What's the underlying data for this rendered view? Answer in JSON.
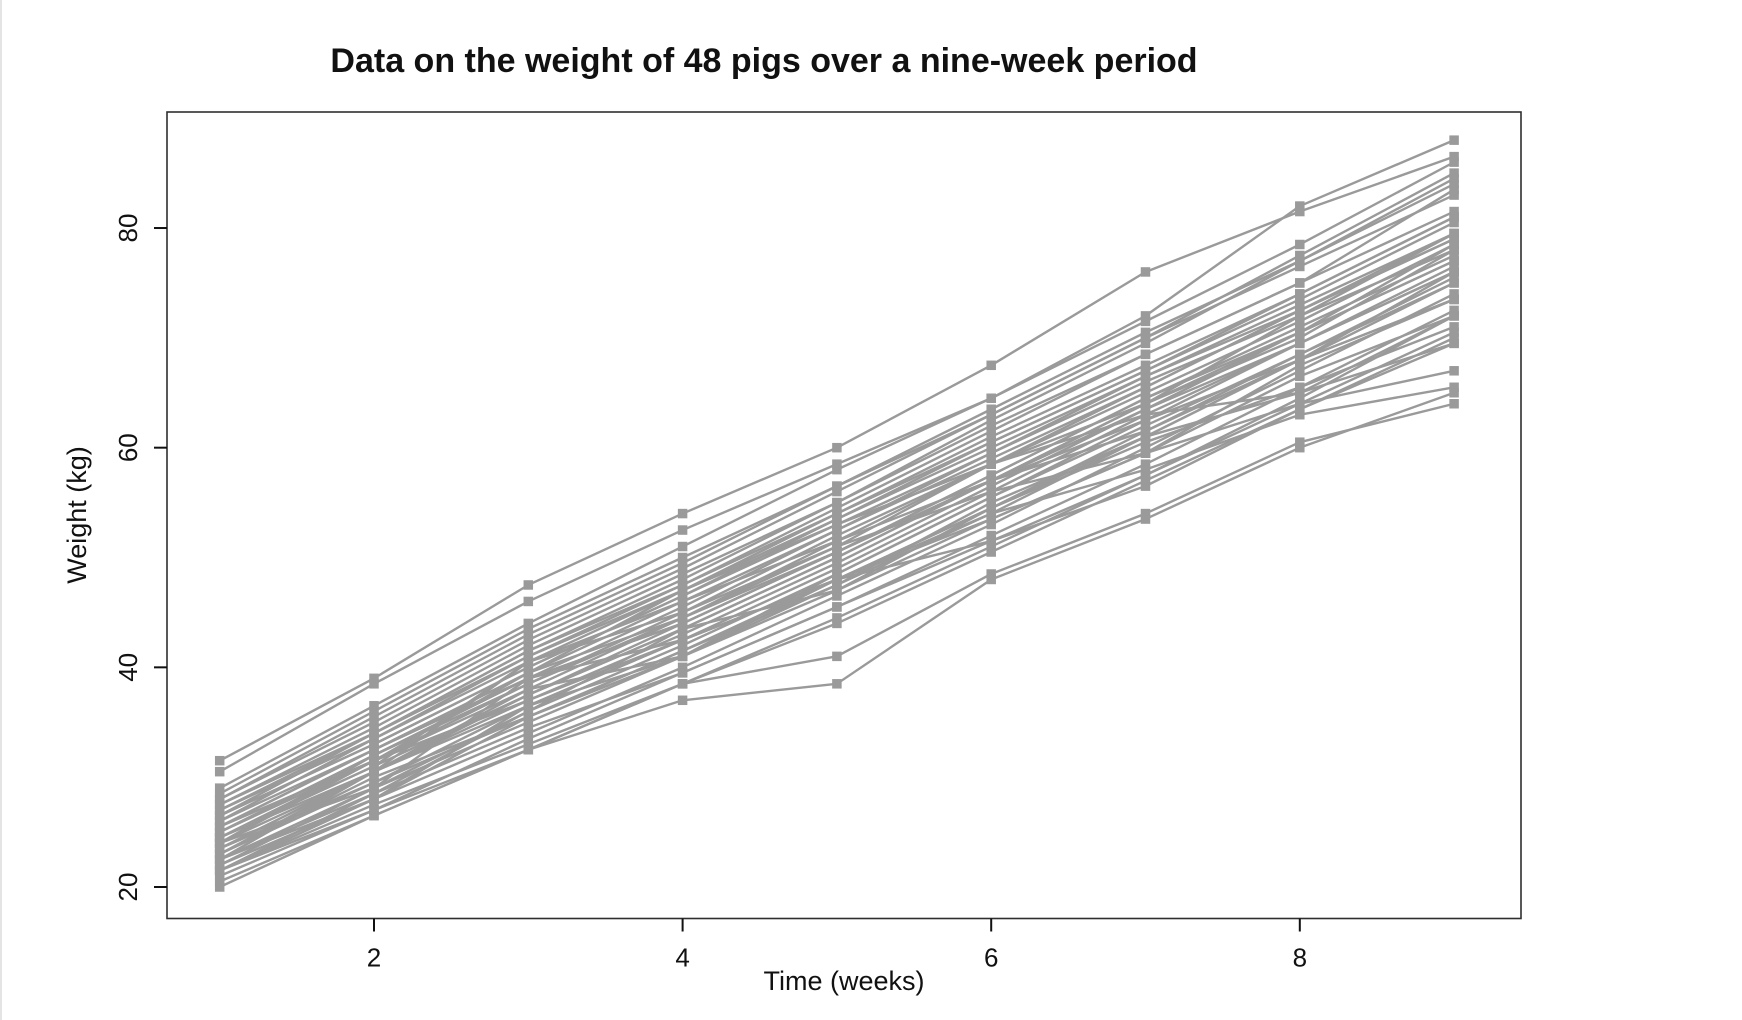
{
  "figure": {
    "background": "#ffffff",
    "box_stroke": "#2f2f2f",
    "series_color": "#9a9a9a",
    "marker_shape": "square"
  },
  "axes": {
    "x": {
      "label": "Time (weeks)",
      "ticks": [
        2,
        4,
        6,
        8
      ]
    },
    "y": {
      "label": "Weight (kg)",
      "ticks": [
        20,
        40,
        60,
        80
      ]
    }
  },
  "chart_data": {
    "type": "line",
    "title": "Data on the weight of 48 pigs over a nine-week period",
    "xlabel": "Time (weeks)",
    "ylabel": "Weight (kg)",
    "x": [
      1,
      2,
      3,
      4,
      5,
      6,
      7,
      8,
      9
    ],
    "xlim": [
      0.66,
      9.42
    ],
    "ylim": [
      17.2,
      90.6
    ],
    "grid": false,
    "legend": "none",
    "n_series": 48,
    "series": [
      [
        24.0,
        32.0,
        39.0,
        42.5,
        48.0,
        54.5,
        61.0,
        65.0,
        72.0
      ],
      [
        22.5,
        30.5,
        40.5,
        45.0,
        51.0,
        58.5,
        64.0,
        72.0,
        78.0
      ],
      [
        22.5,
        28.0,
        36.5,
        41.0,
        47.5,
        55.0,
        61.0,
        68.0,
        76.0
      ],
      [
        24.0,
        31.5,
        39.5,
        44.5,
        51.0,
        56.0,
        59.5,
        64.0,
        67.0
      ],
      [
        24.5,
        31.5,
        37.0,
        42.5,
        48.0,
        54.0,
        58.0,
        63.0,
        65.5
      ],
      [
        23.0,
        30.0,
        35.5,
        41.0,
        48.0,
        51.5,
        56.5,
        63.5,
        69.5
      ],
      [
        22.5,
        28.5,
        36.0,
        43.5,
        47.0,
        53.5,
        59.5,
        67.5,
        73.5
      ],
      [
        23.5,
        30.5,
        38.0,
        41.0,
        48.5,
        55.5,
        62.5,
        68.0,
        73.5
      ],
      [
        20.0,
        26.5,
        32.5,
        37.0,
        38.5,
        48.0,
        53.5,
        60.0,
        65.0
      ],
      [
        25.5,
        32.5,
        39.5,
        47.0,
        53.0,
        58.5,
        63.0,
        65.0,
        69.5
      ],
      [
        24.5,
        31.0,
        40.5,
        46.0,
        51.5,
        57.0,
        62.5,
        69.5,
        76.0
      ],
      [
        24.0,
        29.0,
        39.0,
        44.0,
        50.5,
        57.0,
        61.5,
        68.0,
        73.5
      ],
      [
        23.5,
        30.5,
        36.5,
        42.5,
        48.0,
        54.5,
        60.5,
        65.5,
        71.0
      ],
      [
        21.5,
        28.0,
        35.5,
        41.5,
        48.0,
        53.5,
        59.5,
        66.5,
        72.0
      ],
      [
        25.0,
        32.0,
        38.5,
        44.5,
        50.5,
        57.0,
        63.5,
        69.5,
        76.5
      ],
      [
        21.5,
        28.5,
        34.5,
        39.5,
        45.5,
        51.5,
        57.5,
        64.5,
        72.0
      ],
      [
        26.0,
        33.5,
        41.0,
        47.0,
        53.5,
        60.0,
        66.5,
        72.5,
        79.0
      ],
      [
        27.0,
        34.0,
        41.5,
        47.5,
        54.0,
        60.5,
        67.0,
        74.0,
        81.0
      ],
      [
        25.5,
        32.5,
        39.0,
        44.0,
        50.5,
        57.5,
        64.5,
        70.5,
        78.5
      ],
      [
        26.5,
        33.0,
        40.0,
        46.5,
        53.0,
        59.5,
        66.0,
        72.0,
        79.5
      ],
      [
        22.0,
        29.0,
        36.0,
        42.0,
        48.5,
        55.5,
        62.0,
        68.5,
        75.5
      ],
      [
        23.0,
        30.5,
        37.5,
        43.5,
        50.0,
        57.0,
        64.0,
        70.0,
        78.0
      ],
      [
        27.5,
        34.5,
        42.0,
        48.5,
        55.0,
        62.0,
        68.5,
        75.0,
        83.5
      ],
      [
        28.0,
        35.5,
        43.0,
        49.5,
        56.5,
        63.5,
        70.5,
        77.0,
        84.5
      ],
      [
        29.0,
        36.5,
        44.0,
        51.0,
        58.0,
        64.5,
        71.5,
        78.5,
        86.0
      ],
      [
        31.5,
        39.0,
        47.5,
        54.0,
        60.0,
        67.5,
        76.0,
        81.5,
        86.5
      ],
      [
        30.5,
        38.5,
        46.0,
        52.5,
        58.5,
        64.5,
        72.0,
        82.0,
        88.0
      ],
      [
        26.5,
        34.0,
        41.5,
        48.0,
        55.0,
        62.5,
        69.5,
        77.0,
        84.0
      ],
      [
        25.0,
        31.5,
        38.0,
        44.5,
        51.5,
        58.5,
        65.5,
        72.5,
        79.5
      ],
      [
        24.0,
        30.5,
        37.0,
        43.0,
        49.5,
        56.5,
        63.5,
        70.5,
        77.0
      ],
      [
        22.0,
        28.0,
        34.0,
        40.0,
        46.5,
        53.0,
        60.0,
        67.0,
        74.0
      ],
      [
        21.0,
        27.0,
        33.5,
        39.5,
        45.5,
        52.0,
        58.5,
        65.5,
        72.5
      ],
      [
        20.5,
        26.5,
        32.5,
        38.5,
        44.5,
        51.0,
        57.5,
        64.0,
        70.5
      ],
      [
        23.5,
        29.5,
        35.5,
        41.5,
        47.5,
        54.0,
        61.0,
        68.0,
        75.0
      ],
      [
        26.0,
        32.5,
        39.5,
        46.0,
        52.5,
        59.0,
        65.5,
        72.5,
        79.0
      ],
      [
        28.5,
        36.0,
        43.5,
        50.0,
        56.5,
        63.0,
        70.0,
        77.5,
        85.0
      ],
      [
        27.0,
        33.5,
        40.5,
        47.0,
        54.0,
        61.0,
        67.5,
        74.0,
        81.0
      ],
      [
        25.5,
        31.5,
        38.5,
        45.0,
        52.0,
        58.5,
        65.0,
        71.5,
        78.5
      ],
      [
        24.5,
        30.5,
        37.5,
        44.0,
        50.5,
        57.5,
        64.5,
        71.0,
        77.5
      ],
      [
        23.0,
        29.5,
        36.5,
        42.5,
        49.0,
        56.0,
        63.0,
        69.5,
        76.0
      ],
      [
        22.5,
        29.0,
        35.0,
        41.0,
        47.0,
        54.5,
        61.5,
        68.5,
        75.0
      ],
      [
        21.5,
        27.5,
        33.0,
        38.5,
        44.0,
        50.5,
        57.0,
        63.5,
        70.0
      ],
      [
        26.5,
        33.0,
        40.0,
        46.5,
        53.5,
        60.5,
        67.0,
        73.5,
        80.5
      ],
      [
        25.0,
        32.0,
        39.0,
        45.5,
        52.5,
        59.5,
        66.5,
        73.0,
        79.5
      ],
      [
        28.0,
        35.0,
        42.5,
        49.0,
        56.0,
        63.0,
        70.0,
        76.5,
        83.0
      ],
      [
        27.5,
        34.0,
        41.0,
        47.5,
        54.5,
        61.5,
        68.5,
        75.0,
        81.5
      ],
      [
        21.5,
        27.0,
        32.5,
        38.5,
        41.0,
        48.5,
        54.0,
        60.5,
        64.0
      ],
      [
        24.5,
        31.0,
        37.5,
        43.5,
        50.0,
        57.0,
        64.0,
        70.5,
        77.0
      ]
    ]
  }
}
